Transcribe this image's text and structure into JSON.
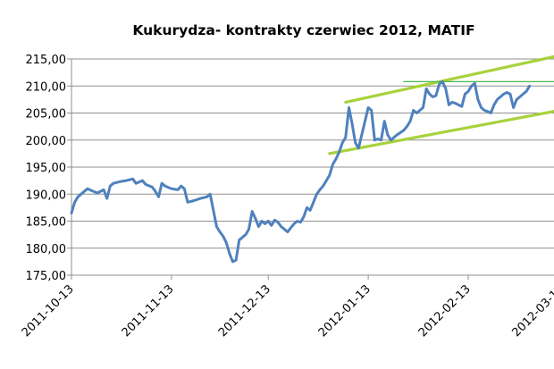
{
  "chart_data": {
    "type": "line",
    "title": "Kukurydza- kontrakty czerwiec 2012, MATIF",
    "xlabel": "",
    "ylabel": "",
    "ylim": [
      175,
      215
    ],
    "yticks": [
      "175,00",
      "180,00",
      "185,00",
      "190,00",
      "195,00",
      "200,00",
      "205,00",
      "210,00",
      "215,00"
    ],
    "xtick_labels": [
      "2011-10-13",
      "2011-11-13",
      "2011-12-13",
      "2012-01-13",
      "2012-02-13",
      "2012-03-13"
    ],
    "xtick_dates": [
      "2011-10-13",
      "2011-11-13",
      "2011-12-13",
      "2012-01-13",
      "2012-02-13",
      "2012-03-13"
    ],
    "grid": true,
    "legend": "none",
    "series": [
      {
        "color": "#4f81bd",
        "points": [
          [
            "2011-10-13",
            186.5
          ],
          [
            "2011-10-14",
            188.5
          ],
          [
            "2011-10-15",
            189.5
          ],
          [
            "2011-10-17",
            190.5
          ],
          [
            "2011-10-18",
            191.0
          ],
          [
            "2011-10-19",
            190.7
          ],
          [
            "2011-10-21",
            190.2
          ],
          [
            "2011-10-23",
            190.8
          ],
          [
            "2011-10-24",
            189.2
          ],
          [
            "2011-10-25",
            191.5
          ],
          [
            "2011-10-26",
            192.0
          ],
          [
            "2011-10-28",
            192.3
          ],
          [
            "2011-10-30",
            192.5
          ],
          [
            "2011-11-01",
            192.8
          ],
          [
            "2011-11-02",
            192.0
          ],
          [
            "2011-11-04",
            192.5
          ],
          [
            "2011-11-05",
            191.8
          ],
          [
            "2011-11-07",
            191.3
          ],
          [
            "2011-11-08",
            190.5
          ],
          [
            "2011-11-09",
            189.5
          ],
          [
            "2011-11-10",
            192.0
          ],
          [
            "2011-11-11",
            191.5
          ],
          [
            "2011-11-13",
            191.0
          ],
          [
            "2011-11-15",
            190.8
          ],
          [
            "2011-11-16",
            191.5
          ],
          [
            "2011-11-17",
            191.0
          ],
          [
            "2011-11-18",
            188.5
          ],
          [
            "2011-11-20",
            188.8
          ],
          [
            "2011-11-22",
            189.2
          ],
          [
            "2011-11-24",
            189.5
          ],
          [
            "2011-11-25",
            190.0
          ],
          [
            "2011-11-27",
            184.0
          ],
          [
            "2011-11-28",
            183.0
          ],
          [
            "2011-11-29",
            182.2
          ],
          [
            "2011-11-30",
            181.0
          ],
          [
            "2011-12-01",
            179.0
          ],
          [
            "2011-12-02",
            177.5
          ],
          [
            "2011-12-03",
            177.8
          ],
          [
            "2011-12-04",
            181.5
          ],
          [
            "2011-12-06",
            182.5
          ],
          [
            "2011-12-07",
            183.5
          ],
          [
            "2011-12-08",
            186.8
          ],
          [
            "2011-12-09",
            185.5
          ],
          [
            "2011-12-10",
            184.0
          ],
          [
            "2011-12-11",
            185.0
          ],
          [
            "2011-12-12",
            184.5
          ],
          [
            "2011-12-13",
            185.0
          ],
          [
            "2011-12-14",
            184.2
          ],
          [
            "2011-12-15",
            185.2
          ],
          [
            "2011-12-16",
            184.8
          ],
          [
            "2011-12-17",
            184.0
          ],
          [
            "2011-12-18",
            183.5
          ],
          [
            "2011-12-19",
            183.0
          ],
          [
            "2011-12-20",
            183.8
          ],
          [
            "2011-12-21",
            184.5
          ],
          [
            "2011-12-22",
            185.0
          ],
          [
            "2011-12-23",
            184.8
          ],
          [
            "2011-12-24",
            185.8
          ],
          [
            "2011-12-25",
            187.5
          ],
          [
            "2011-12-26",
            187.0
          ],
          [
            "2011-12-27",
            188.5
          ],
          [
            "2011-12-28",
            190.0
          ],
          [
            "2011-12-29",
            190.8
          ],
          [
            "2011-12-30",
            191.5
          ],
          [
            "2011-12-31",
            192.5
          ],
          [
            "2012-01-01",
            193.5
          ],
          [
            "2012-01-02",
            195.5
          ],
          [
            "2012-01-03",
            196.5
          ],
          [
            "2012-01-04",
            197.8
          ],
          [
            "2012-01-05",
            199.5
          ],
          [
            "2012-01-06",
            200.5
          ],
          [
            "2012-01-07",
            206.0
          ],
          [
            "2012-01-08",
            203.0
          ],
          [
            "2012-01-09",
            199.5
          ],
          [
            "2012-01-10",
            198.5
          ],
          [
            "2012-01-11",
            201.0
          ],
          [
            "2012-01-12",
            203.5
          ],
          [
            "2012-01-13",
            206.0
          ],
          [
            "2012-01-14",
            205.5
          ],
          [
            "2012-01-15",
            200.0
          ],
          [
            "2012-01-16",
            200.2
          ],
          [
            "2012-01-17",
            200.0
          ],
          [
            "2012-01-18",
            203.5
          ],
          [
            "2012-01-19",
            201.0
          ],
          [
            "2012-01-20",
            200.0
          ],
          [
            "2012-01-21",
            200.5
          ],
          [
            "2012-01-22",
            201.0
          ],
          [
            "2012-01-24",
            201.8
          ],
          [
            "2012-01-25",
            202.5
          ],
          [
            "2012-01-26",
            203.5
          ],
          [
            "2012-01-27",
            205.5
          ],
          [
            "2012-01-28",
            205.0
          ],
          [
            "2012-01-29",
            205.5
          ],
          [
            "2012-01-30",
            206.0
          ],
          [
            "2012-01-31",
            209.5
          ],
          [
            "2012-02-01",
            208.5
          ],
          [
            "2012-02-02",
            208.0
          ],
          [
            "2012-02-03",
            208.2
          ],
          [
            "2012-02-04",
            210.3
          ],
          [
            "2012-02-05",
            210.8
          ],
          [
            "2012-02-06",
            209.5
          ],
          [
            "2012-02-07",
            206.5
          ],
          [
            "2012-02-08",
            207.0
          ],
          [
            "2012-02-09",
            206.8
          ],
          [
            "2012-02-10",
            206.5
          ],
          [
            "2012-02-11",
            206.2
          ],
          [
            "2012-02-12",
            208.5
          ],
          [
            "2012-02-13",
            209.0
          ],
          [
            "2012-02-14",
            210.0
          ],
          [
            "2012-02-15",
            210.5
          ],
          [
            "2012-02-16",
            207.5
          ],
          [
            "2012-02-17",
            206.0
          ],
          [
            "2012-02-18",
            205.5
          ],
          [
            "2012-02-19",
            205.3
          ],
          [
            "2012-02-20",
            205.0
          ],
          [
            "2012-02-21",
            206.5
          ],
          [
            "2012-02-22",
            207.5
          ],
          [
            "2012-02-23",
            208.0
          ],
          [
            "2012-02-24",
            208.5
          ],
          [
            "2012-02-25",
            208.8
          ],
          [
            "2012-02-26",
            208.5
          ],
          [
            "2012-02-27",
            206.0
          ],
          [
            "2012-02-28",
            207.5
          ],
          [
            "2012-02-29",
            208.0
          ],
          [
            "2012-03-01",
            208.5
          ],
          [
            "2012-03-02",
            209.0
          ],
          [
            "2012-03-03",
            210.0
          ]
        ]
      }
    ],
    "annotations": [
      {
        "kind": "trend-upper",
        "color": "#a8d23c",
        "from": [
          "2012-01-06",
          207.0
        ],
        "to": [
          "2012-03-15",
          216.0
        ]
      },
      {
        "kind": "trend-lower",
        "color": "#a8d23c",
        "from": [
          "2012-01-01",
          197.5
        ],
        "to": [
          "2012-03-15",
          205.8
        ]
      },
      {
        "kind": "resistance",
        "color": "#4cb84c",
        "from": [
          "2012-01-24",
          210.8
        ],
        "to": [
          "2012-03-15",
          210.8
        ]
      }
    ]
  }
}
